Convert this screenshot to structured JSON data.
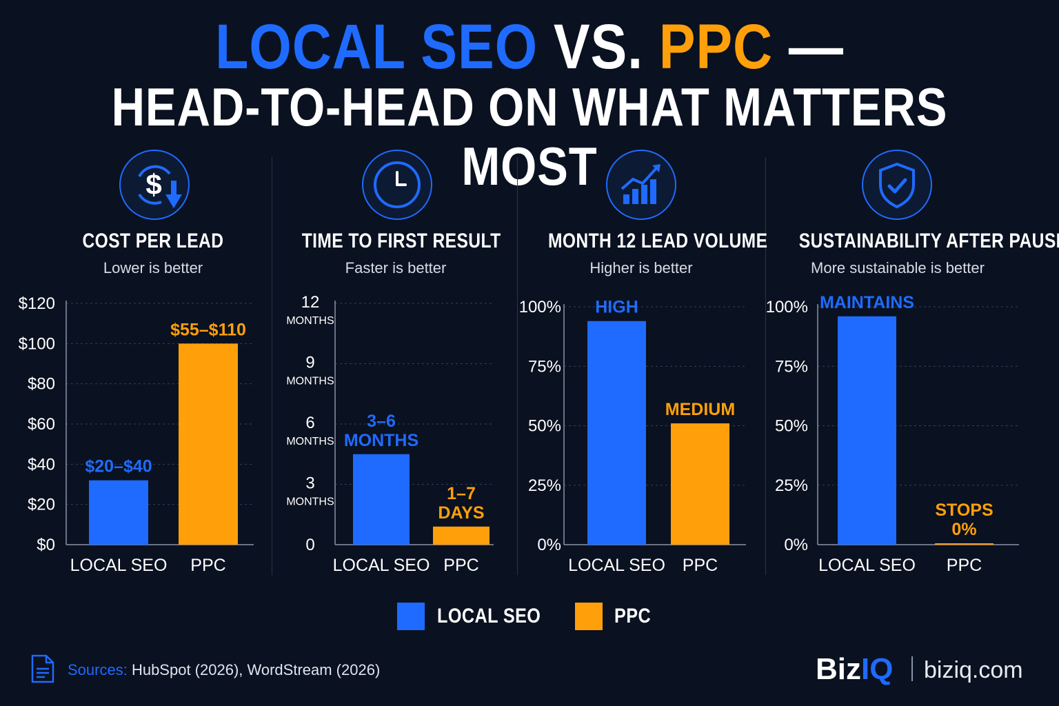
{
  "title": {
    "line1_part1": "LOCAL SEO",
    "line1_part2": "VS.",
    "line1_part3": "PPC",
    "line1_part4": "—",
    "line2": "HEAD-TO-HEAD ON WHAT MATTERS MOST"
  },
  "colors": {
    "local_seo": "#1f6bff",
    "ppc": "#ffa00a",
    "background": "#0a1120"
  },
  "chart_data": [
    {
      "type": "bar",
      "icon": "dollar-down-icon",
      "title": "COST PER LEAD",
      "subtitle": "Lower is better",
      "categories": [
        "LOCAL SEO",
        "PPC"
      ],
      "values": [
        32,
        100
      ],
      "data_labels": [
        [
          "$20–$40"
        ],
        [
          "$55–$110"
        ]
      ],
      "ylim": [
        0,
        120
      ],
      "yticks": [
        0,
        20,
        40,
        60,
        80,
        100,
        120
      ],
      "ytick_labels": [
        [
          "$0"
        ],
        [
          "$20"
        ],
        [
          "$40"
        ],
        [
          "$60"
        ],
        [
          "$80"
        ],
        [
          "$100"
        ],
        [
          "$120"
        ]
      ],
      "grid": true
    },
    {
      "type": "bar",
      "icon": "clock-icon",
      "title": "TIME TO FIRST RESULT",
      "subtitle": "Faster is better",
      "categories": [
        "LOCAL SEO",
        "PPC"
      ],
      "values": [
        4.5,
        0.9
      ],
      "data_labels": [
        [
          "3–6",
          "MONTHS"
        ],
        [
          "1–7",
          "DAYS"
        ]
      ],
      "ylim": [
        0,
        12
      ],
      "yticks": [
        0,
        3,
        6,
        9,
        12
      ],
      "ytick_labels": [
        [
          "0"
        ],
        [
          "3",
          "MONTHS"
        ],
        [
          "6",
          "MONTHS"
        ],
        [
          "9",
          "MONTHS"
        ],
        [
          "12",
          "MONTHS"
        ]
      ],
      "grid": true
    },
    {
      "type": "bar",
      "icon": "growth-chart-icon",
      "title": "MONTH 12 LEAD VOLUME",
      "subtitle": "Higher is better",
      "categories": [
        "LOCAL SEO",
        "PPC"
      ],
      "values": [
        94,
        51
      ],
      "data_labels": [
        [
          "HIGH"
        ],
        [
          "MEDIUM"
        ]
      ],
      "ylim": [
        0,
        100
      ],
      "yticks": [
        0,
        25,
        50,
        75,
        100
      ],
      "ytick_labels": [
        [
          "0%"
        ],
        [
          "25%"
        ],
        [
          "50%"
        ],
        [
          "75%"
        ],
        [
          "100%"
        ]
      ],
      "grid": true
    },
    {
      "type": "bar",
      "icon": "shield-check-icon",
      "title": "SUSTAINABILITY AFTER PAUSE",
      "subtitle": "More sustainable is better",
      "categories": [
        "LOCAL SEO",
        "PPC"
      ],
      "values": [
        96,
        0
      ],
      "data_labels": [
        [
          "MAINTAINS"
        ],
        [
          "STOPS",
          "0%"
        ]
      ],
      "ylim": [
        0,
        100
      ],
      "yticks": [
        0,
        25,
        50,
        75,
        100
      ],
      "ytick_labels": [
        [
          "0%"
        ],
        [
          "25%"
        ],
        [
          "50%"
        ],
        [
          "75%"
        ],
        [
          "100%"
        ]
      ],
      "grid": true
    }
  ],
  "legend": [
    {
      "label": "LOCAL SEO",
      "color": "#1f6bff"
    },
    {
      "label": "PPC",
      "color": "#ffa00a"
    }
  ],
  "sources": {
    "label": "Sources:",
    "text": "HubSpot (2026), WordStream (2026)"
  },
  "brand": {
    "biz": "Biz",
    "iq": "IQ",
    "url": "biziq.com"
  }
}
